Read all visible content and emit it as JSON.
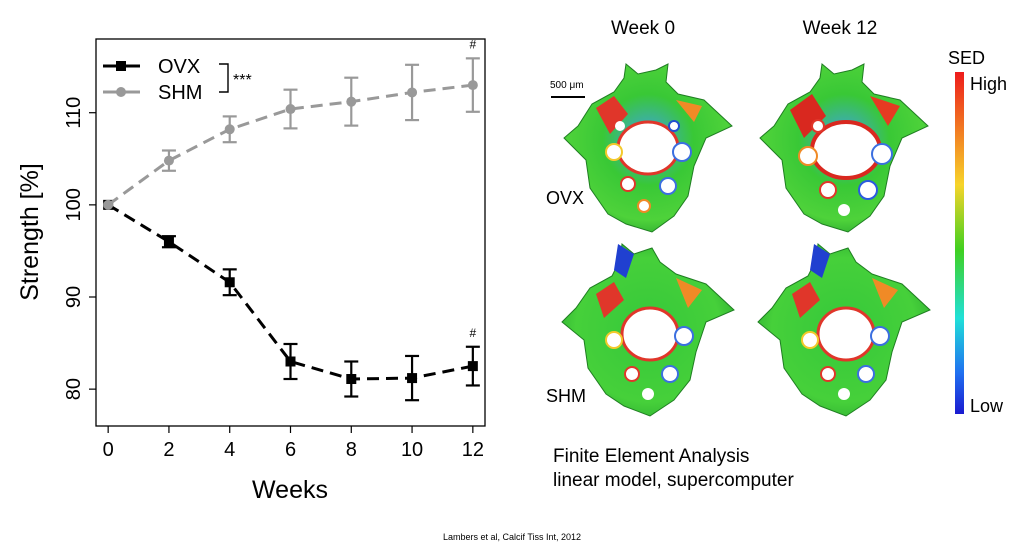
{
  "chart_data": {
    "type": "line",
    "xlabel": "Weeks",
    "ylabel": "Strength [%]",
    "x": [
      0,
      2,
      4,
      6,
      8,
      10,
      12
    ],
    "xticks": [
      "0",
      "2",
      "4",
      "6",
      "8",
      "10",
      "12"
    ],
    "yticks": [
      "80",
      "90",
      "100",
      "110"
    ],
    "xlim": [
      -0.4,
      12.4
    ],
    "ylim": [
      76,
      118
    ],
    "grid": false,
    "legend_position": "top-left",
    "significance_label": "***",
    "series": [
      {
        "name": "OVX",
        "color": "#000000",
        "style": "dashed",
        "marker": "square",
        "values": [
          100,
          96.0,
          91.6,
          83.0,
          81.1,
          81.2,
          82.5
        ],
        "errors": [
          0,
          0.6,
          1.4,
          1.9,
          1.9,
          2.4,
          2.1
        ],
        "annotations": [
          {
            "x": 12,
            "text": "#"
          }
        ]
      },
      {
        "name": "SHM",
        "color": "#999999",
        "style": "dashed",
        "marker": "circle",
        "values": [
          100,
          104.8,
          108.2,
          110.4,
          111.2,
          112.2,
          113.0
        ],
        "errors": [
          0,
          1.1,
          1.4,
          2.1,
          2.6,
          3.0,
          2.9
        ],
        "annotations": [
          {
            "x": 12,
            "text": "#"
          }
        ]
      }
    ]
  },
  "fem": {
    "columns": [
      "Week 0",
      "Week 12"
    ],
    "rows": [
      "OVX",
      "SHM"
    ],
    "scale_bar_label": "500 μm",
    "colorbar": {
      "title": "SED",
      "high_label": "High",
      "low_label": "Low"
    },
    "caption_line1": "Finite Element Analysis",
    "caption_line2": "linear model, supercomputer"
  },
  "citation": "Lambers et al, Calcif Tiss Int, 2012"
}
